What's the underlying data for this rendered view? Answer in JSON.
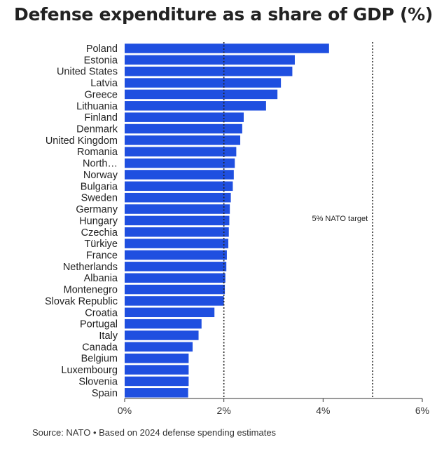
{
  "title": "Defense expenditure as a share of GDP (%)",
  "source": "Source: NATO • Based on 2024 defense spending estimates",
  "colors": {
    "bar": "#1f4fe0",
    "text": "#222222",
    "axis": "#333333"
  },
  "chart_data": {
    "type": "bar",
    "orientation": "horizontal",
    "categories": [
      "Poland",
      "Estonia",
      "United States",
      "Latvia",
      "Greece",
      "Lithuania",
      "Finland",
      "Denmark",
      "United Kingdom",
      "Romania",
      "North…",
      "Norway",
      "Bulgaria",
      "Sweden",
      "Germany",
      "Hungary",
      "Czechia",
      "Türkiye",
      "France",
      "Netherlands",
      "Albania",
      "Montenegro",
      "Slovak Republic",
      "Croatia",
      "Portugal",
      "Italy",
      "Canada",
      "Belgium",
      "Luxembourg",
      "Slovenia",
      "Spain"
    ],
    "values": [
      4.12,
      3.43,
      3.38,
      3.15,
      3.08,
      2.85,
      2.4,
      2.37,
      2.33,
      2.25,
      2.22,
      2.2,
      2.18,
      2.14,
      2.12,
      2.11,
      2.1,
      2.09,
      2.06,
      2.05,
      2.03,
      2.02,
      2.0,
      1.81,
      1.55,
      1.49,
      1.37,
      1.29,
      1.29,
      1.29,
      1.28
    ],
    "xlim": [
      0,
      6
    ],
    "xticks": [
      0,
      2,
      4,
      6
    ],
    "xtick_labels": [
      "0%",
      "2%",
      "4%",
      "6%"
    ],
    "reference_lines": [
      {
        "value": 2,
        "label": ""
      },
      {
        "value": 5,
        "label": "5% NATO target"
      }
    ],
    "grid": false,
    "xlabel": "",
    "ylabel": ""
  }
}
